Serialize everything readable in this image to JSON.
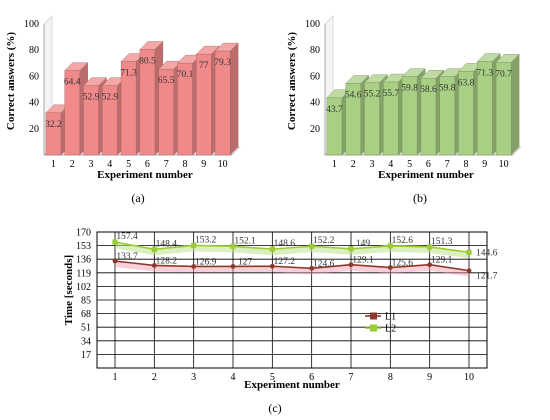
{
  "chart_data": [
    {
      "id": "a",
      "type": "bar",
      "panel_label": "(a)",
      "xlabel": "Experiment number",
      "ylabel": "Correct answers (%)",
      "categories": [
        "1",
        "2",
        "3",
        "4",
        "5",
        "6",
        "7",
        "8",
        "9",
        "10"
      ],
      "values": [
        32.2,
        64.4,
        52.9,
        52.9,
        71.3,
        80.5,
        65.5,
        70.1,
        77,
        79.3
      ],
      "ylim": [
        0,
        100
      ],
      "yticks": [
        20,
        40,
        60,
        80,
        100
      ],
      "style": "3d",
      "color": "#f08a8a",
      "grid": false
    },
    {
      "id": "b",
      "type": "bar",
      "panel_label": "(b)",
      "xlabel": "Experiment number",
      "ylabel": "Correct answers (%)",
      "categories": [
        "1",
        "2",
        "3",
        "4",
        "5",
        "6",
        "7",
        "8",
        "9",
        "10"
      ],
      "values": [
        43.7,
        54.6,
        55.2,
        55.7,
        59.8,
        58.6,
        59.8,
        63.8,
        71.3,
        70.7
      ],
      "ylim": [
        0,
        100
      ],
      "yticks": [
        20,
        40,
        60,
        80,
        100
      ],
      "style": "3d",
      "color": "#a9cf84",
      "grid": false
    },
    {
      "id": "c",
      "type": "line",
      "panel_label": "(c)",
      "xlabel": "Experiment number",
      "ylabel": "Time [seconds]",
      "x": [
        1,
        2,
        3,
        4,
        5,
        6,
        7,
        8,
        9,
        10
      ],
      "ylim": [
        0,
        170
      ],
      "yticks": [
        17,
        34,
        51,
        68,
        85,
        102,
        119,
        136,
        153,
        170
      ],
      "grid": true,
      "legend_position": "center-right",
      "series": [
        {
          "name": "L1",
          "color": "#8b3a2a",
          "values": [
            133.7,
            128.2,
            126.9,
            127,
            127.2,
            124.6,
            129.1,
            125.6,
            129.1,
            121.7
          ]
        },
        {
          "name": "L2",
          "color": "#9acd32",
          "values": [
            157.4,
            148.4,
            153.2,
            152.1,
            148.6,
            152.2,
            149,
            152.6,
            151.3,
            144.6
          ]
        }
      ]
    }
  ]
}
